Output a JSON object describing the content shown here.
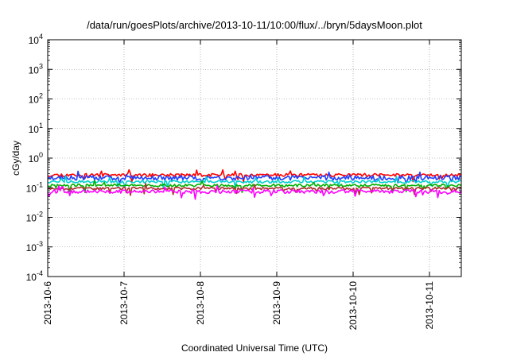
{
  "chart_data": {
    "type": "line",
    "title": "/data/run/goesPlots/archive/2013-10-11/10:00/flux/../bryn/5daysMoon.plot",
    "xlabel": "Coordinated Universal Time (UTC)",
    "ylabel": "cGy/day",
    "yscale": "log",
    "ylim": [
      0.0001,
      10000
    ],
    "xlim": [
      "2013-10-06",
      "2013-10-11 10:00"
    ],
    "grid": true,
    "x_ticks": [
      {
        "label": "2013-10-6",
        "value": "2013-10-06"
      },
      {
        "label": "2013-10-7",
        "value": "2013-10-07"
      },
      {
        "label": "2013-10-8",
        "value": "2013-10-08"
      },
      {
        "label": "2013-10-9",
        "value": "2013-10-09"
      },
      {
        "label": "2013-10-10",
        "value": "2013-10-10"
      },
      {
        "label": "2013-10-11",
        "value": "2013-10-11"
      }
    ],
    "y_ticks": [
      {
        "base": "10",
        "exp": "-4",
        "value": 0.0001
      },
      {
        "base": "10",
        "exp": "-3",
        "value": 0.001
      },
      {
        "base": "10",
        "exp": "-2",
        "value": 0.01
      },
      {
        "base": "10",
        "exp": "-1",
        "value": 0.1
      },
      {
        "base": "10",
        "exp": "0",
        "value": 1
      },
      {
        "base": "10",
        "exp": "1",
        "value": 10
      },
      {
        "base": "10",
        "exp": "2",
        "value": 100
      },
      {
        "base": "10",
        "exp": "3",
        "value": 1000
      },
      {
        "base": "10",
        "exp": "4",
        "value": 10000
      }
    ],
    "series": [
      {
        "color": "#ff0000",
        "base": 0.27,
        "jitter": 0.12,
        "seed": 11
      },
      {
        "color": "#2040ff",
        "base": 0.22,
        "jitter": 0.18,
        "seed": 23
      },
      {
        "color": "#00d0d0",
        "base": 0.16,
        "jitter": 0.1,
        "seed": 37
      },
      {
        "color": "#00b000",
        "base": 0.12,
        "jitter": 0.1,
        "seed": 41
      },
      {
        "color": "#b03030",
        "base": 0.095,
        "jitter": 0.1,
        "seed": 53
      },
      {
        "color": "#ff00ff",
        "base": 0.075,
        "jitter": 0.14,
        "seed": 67
      }
    ]
  }
}
